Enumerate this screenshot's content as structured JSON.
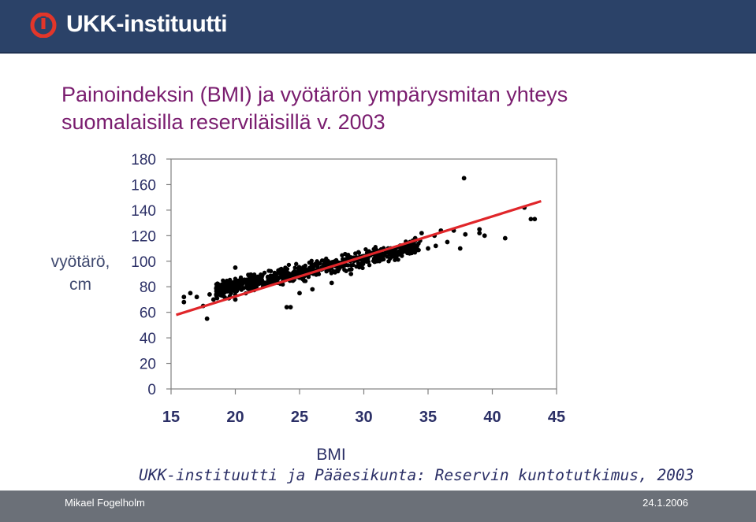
{
  "header": {
    "logo_name": "ukk-logo-icon",
    "logo_text": "UKK-instituutti",
    "background": "#2b4268",
    "logo_color": "#e2362a"
  },
  "title": {
    "line1": "Painoindeksin (BMI) ja vyötärön ympärysmitan yhteys",
    "line2": "suomalaisilla reserviläisillä v. 2003",
    "color": "#7a1d6f"
  },
  "source_text": "UKK-instituutti ja Pääesikunta: Reservin kuntotutkimus, 2003",
  "footer": {
    "author": "Mikael Fogelholm",
    "date": "24.1.2006"
  },
  "chart_data": {
    "type": "scatter",
    "title": "",
    "xlabel": "BMI",
    "ylabel_lines": [
      "vyötärö,",
      "cm"
    ],
    "xlim": [
      15,
      45
    ],
    "ylim": [
      0,
      180
    ],
    "xticks": [
      15,
      20,
      25,
      30,
      35,
      40,
      45
    ],
    "yticks": [
      0,
      20,
      40,
      60,
      80,
      100,
      120,
      140,
      160,
      180
    ],
    "grid": false,
    "legend": "none",
    "point_color": "#000000",
    "trend_color": "#e0262a",
    "trend_line": {
      "x": [
        15.4,
        43.8
      ],
      "y": [
        58,
        147
      ]
    },
    "cluster_center": {
      "x": [
        18.5,
        34.5
      ],
      "y_at_start": 77,
      "y_at_end": 112,
      "spread": 6
    },
    "points": [
      [
        16.0,
        68
      ],
      [
        16.0,
        72
      ],
      [
        16.5,
        75
      ],
      [
        17.0,
        72
      ],
      [
        17.5,
        65
      ],
      [
        17.8,
        55
      ],
      [
        18.0,
        74
      ],
      [
        18.3,
        70
      ],
      [
        18.6,
        78
      ],
      [
        19.0,
        73
      ],
      [
        19.5,
        71
      ],
      [
        20.0,
        70
      ],
      [
        20.0,
        95
      ],
      [
        20.5,
        85
      ],
      [
        24.0,
        64
      ],
      [
        24.3,
        64
      ],
      [
        25.0,
        75
      ],
      [
        26.0,
        78
      ],
      [
        27.5,
        83
      ],
      [
        29.0,
        90
      ],
      [
        31.0,
        100
      ],
      [
        32.5,
        103
      ],
      [
        33.5,
        109
      ],
      [
        33.6,
        115
      ],
      [
        34.0,
        118
      ],
      [
        34.5,
        122
      ],
      [
        35.0,
        110
      ],
      [
        35.5,
        120
      ],
      [
        35.6,
        112
      ],
      [
        36.0,
        124
      ],
      [
        36.5,
        115
      ],
      [
        37.0,
        124
      ],
      [
        37.5,
        110
      ],
      [
        37.8,
        165
      ],
      [
        37.9,
        121
      ],
      [
        39.0,
        122
      ],
      [
        39.0,
        125
      ],
      [
        39.4,
        120
      ],
      [
        41.0,
        118
      ],
      [
        42.5,
        142
      ],
      [
        43.0,
        133
      ],
      [
        43.3,
        133
      ]
    ]
  }
}
